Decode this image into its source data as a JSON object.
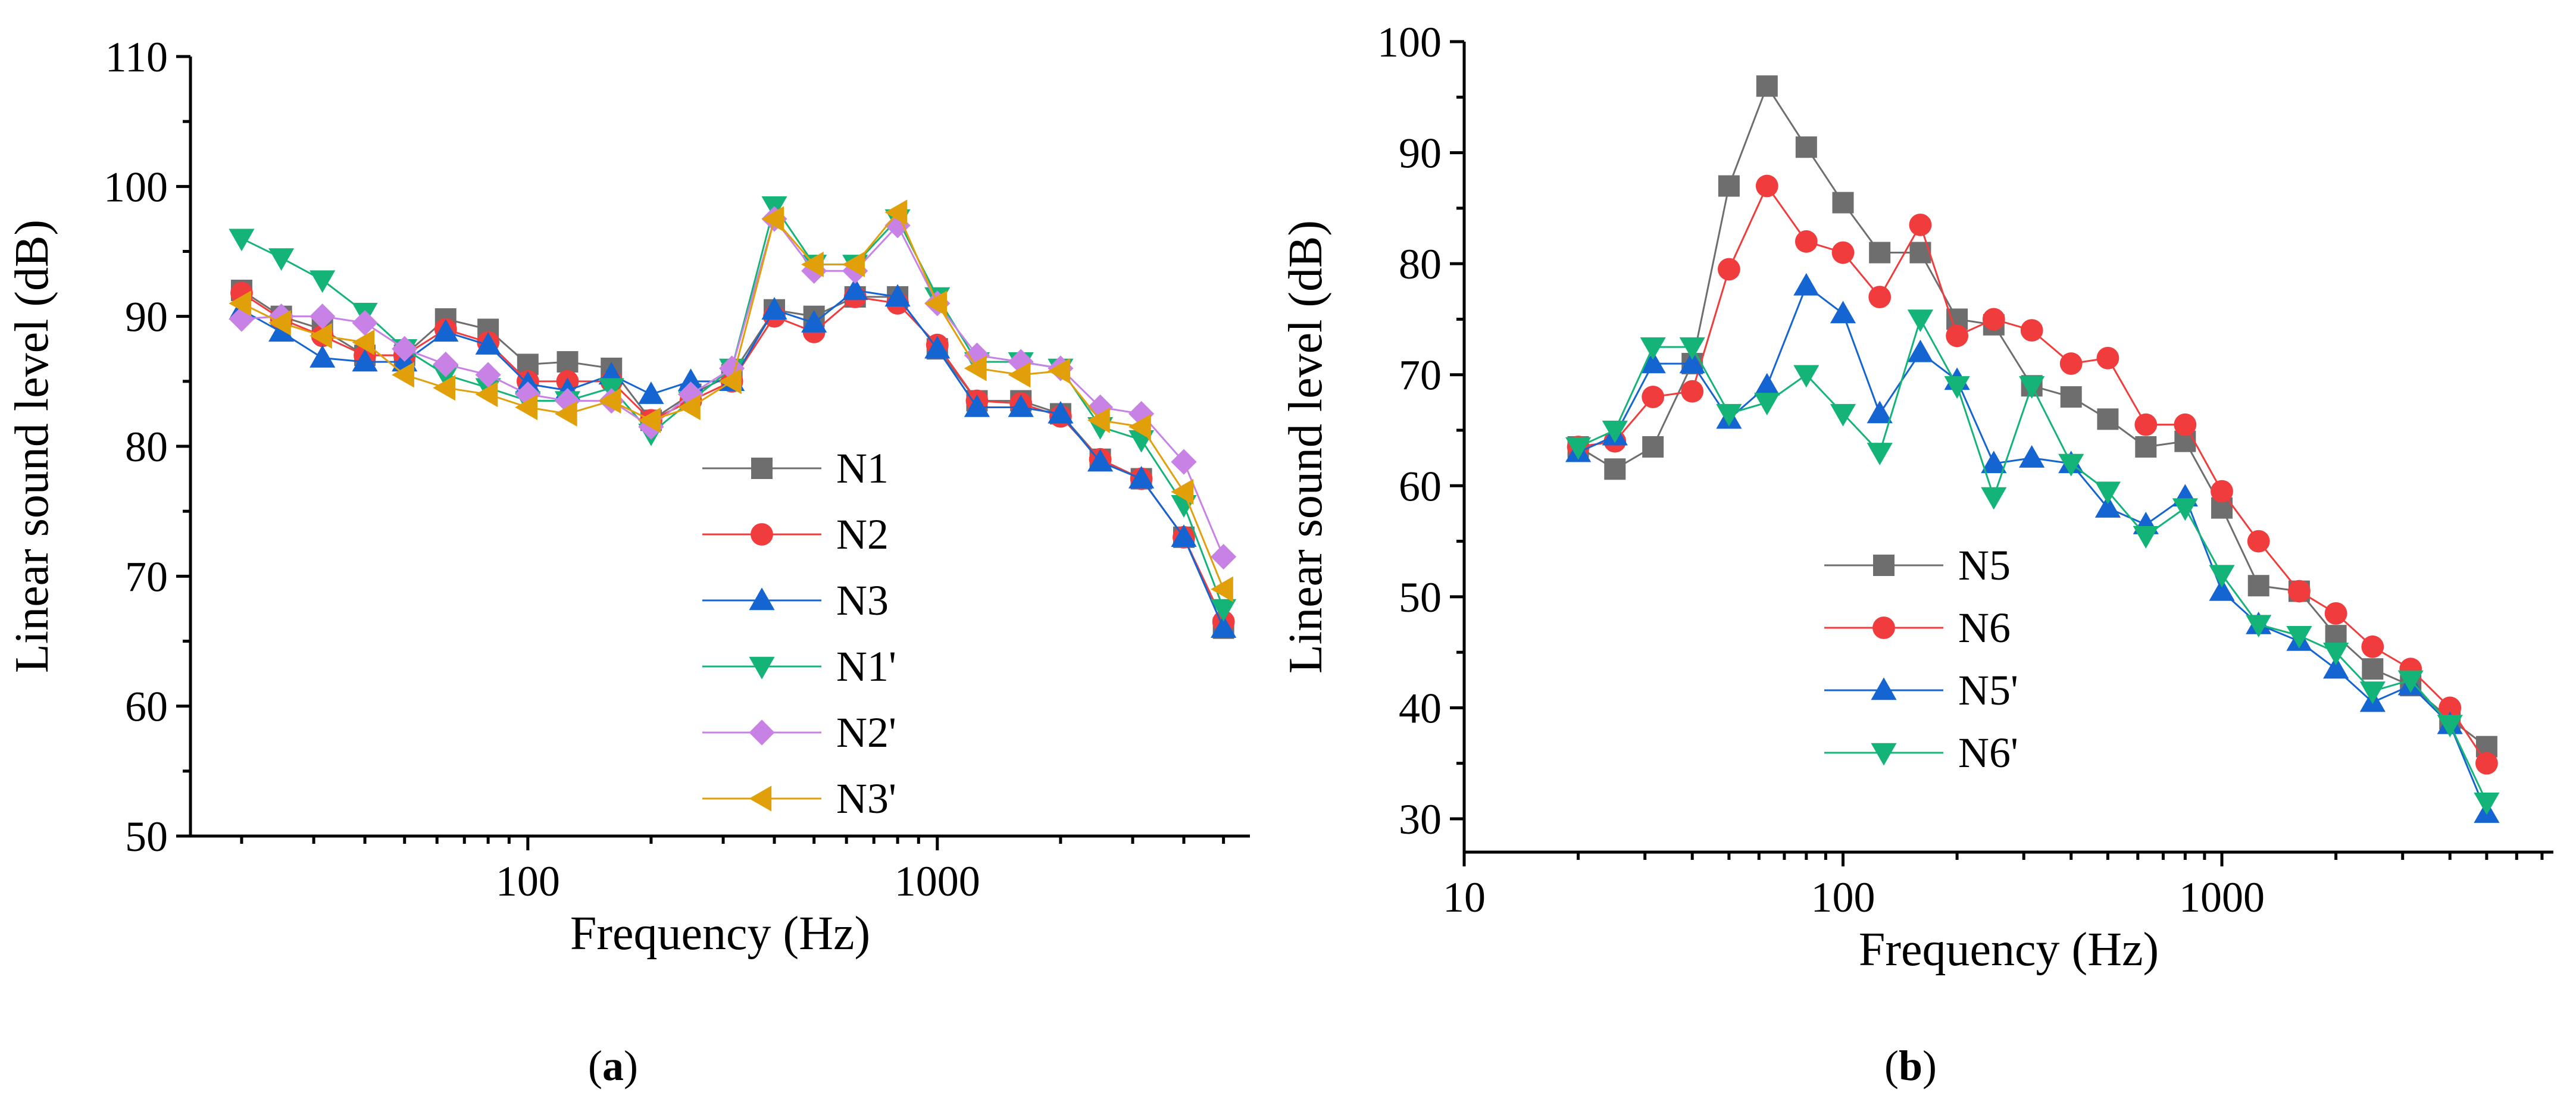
{
  "chart_data": [
    {
      "type": "line",
      "panel": "a",
      "caption": {
        "open": "(",
        "letter": "a",
        "close": ")"
      },
      "xlabel": "Frequency (Hz)",
      "ylabel": "Linear sound level (dB)",
      "xscale": "log",
      "xlim": [
        15,
        5800
      ],
      "ylim": [
        50,
        110
      ],
      "xticks": [
        100,
        1000
      ],
      "xtick_labels": [
        "100",
        "1000"
      ],
      "yticks": [
        50,
        60,
        70,
        80,
        90,
        100,
        110
      ],
      "ytick_labels": [
        "50",
        "60",
        "70",
        "80",
        "90",
        "100",
        "110"
      ],
      "legend_position": "lower-center",
      "x": [
        20,
        25,
        31.5,
        40,
        50,
        63,
        80,
        100,
        125,
        160,
        200,
        250,
        315,
        400,
        500,
        630,
        800,
        1000,
        1250,
        1600,
        2000,
        2500,
        3150,
        4000,
        5000
      ],
      "series": [
        {
          "name": "N1",
          "color": "#6e6e6e",
          "marker": "square",
          "values": [
            92,
            90,
            89,
            87,
            87,
            89.8,
            89,
            86.3,
            86.5,
            86,
            82,
            84,
            85.5,
            90.5,
            90,
            91.5,
            91.5,
            87.5,
            83.5,
            83.5,
            82.5,
            79,
            77.5,
            73,
            66
          ]
        },
        {
          "name": "N2",
          "color": "#f03c3c",
          "marker": "circle",
          "values": [
            91.8,
            89.8,
            88.5,
            87,
            87,
            89,
            88,
            85,
            85,
            85,
            82,
            83.5,
            85,
            90,
            88.8,
            91.5,
            91,
            87.8,
            83.5,
            83.3,
            82.3,
            79,
            77.5,
            73,
            66.5
          ]
        },
        {
          "name": "N3",
          "color": "#1464d2",
          "marker": "triangle-up",
          "values": [
            90.5,
            88.8,
            86.8,
            86.5,
            86.5,
            88.8,
            87.8,
            84.8,
            84.3,
            85.5,
            84,
            85,
            85,
            90.5,
            89.5,
            92,
            91.5,
            87.5,
            83,
            83,
            82.5,
            78.8,
            77.5,
            73,
            66
          ]
        },
        {
          "name": "N1'",
          "color": "#14b478",
          "marker": "triangle-down",
          "values": [
            96,
            94.5,
            92.8,
            90.3,
            87.5,
            85.5,
            84.5,
            83.5,
            83.5,
            84.5,
            81,
            83.5,
            86,
            98.5,
            94,
            94,
            97.5,
            91.5,
            86.5,
            86.5,
            86,
            81.5,
            80.5,
            75.5,
            67.5
          ]
        },
        {
          "name": "N2'",
          "color": "#c882e6",
          "marker": "diamond",
          "values": [
            89.8,
            90,
            90,
            89.5,
            87.5,
            86.3,
            85.5,
            84,
            83.5,
            83.5,
            81.5,
            84,
            86,
            97.5,
            93.5,
            93.5,
            97,
            91,
            87,
            86.5,
            86,
            83,
            82.5,
            78.8,
            71.5
          ]
        },
        {
          "name": "N3'",
          "color": "#e1a00a",
          "marker": "triangle-left",
          "values": [
            91,
            89.5,
            88.5,
            88,
            85.5,
            84.5,
            84,
            83,
            82.5,
            83.5,
            82,
            83,
            85,
            97.5,
            94,
            94,
            98,
            91,
            86,
            85.5,
            85.8,
            82,
            81.5,
            76.5,
            69
          ]
        }
      ]
    },
    {
      "type": "line",
      "panel": "b",
      "caption": {
        "open": "(",
        "letter": "b",
        "close": ")"
      },
      "xlabel": "Frequency (Hz)",
      "ylabel": "Linear sound level (dB)",
      "xscale": "log",
      "xlim": [
        10,
        7500
      ],
      "ylim": [
        27,
        100
      ],
      "xticks": [
        10,
        100,
        1000
      ],
      "xtick_labels": [
        "10",
        "100",
        "1000"
      ],
      "yticks": [
        30,
        40,
        50,
        60,
        70,
        80,
        90,
        100
      ],
      "ytick_labels": [
        "30",
        "40",
        "50",
        "60",
        "70",
        "80",
        "90",
        "100"
      ],
      "legend_position": "lower-center",
      "x": [
        20,
        25,
        31.5,
        40,
        50,
        63,
        80,
        100,
        125,
        160,
        200,
        250,
        315,
        400,
        500,
        630,
        800,
        1000,
        1250,
        1600,
        2000,
        2500,
        3150,
        4000,
        5000
      ],
      "series": [
        {
          "name": "N5",
          "color": "#6e6e6e",
          "marker": "square",
          "values": [
            63.5,
            61.5,
            63.5,
            71,
            87,
            96,
            90.5,
            85.5,
            81,
            81,
            75,
            74.5,
            69,
            68,
            66,
            63.5,
            64,
            58,
            51,
            50.5,
            46.5,
            43.5,
            42,
            39,
            36.5
          ]
        },
        {
          "name": "N6",
          "color": "#f03c3c",
          "marker": "circle",
          "values": [
            63.5,
            64,
            68,
            68.5,
            79.5,
            87,
            82,
            81,
            77,
            83.5,
            73.5,
            75,
            74,
            71,
            71.5,
            65.5,
            65.5,
            59.5,
            55,
            50.5,
            48.5,
            45.5,
            43.5,
            40,
            35
          ]
        },
        {
          "name": "N5'",
          "color": "#1464d2",
          "marker": "triangle-up",
          "values": [
            63,
            64.5,
            71,
            71,
            66,
            69,
            78,
            75.5,
            66.5,
            72,
            69.5,
            62,
            62.5,
            62,
            58,
            56.5,
            59,
            50.5,
            47.5,
            46,
            43.5,
            40.5,
            42,
            38.5,
            30.5
          ]
        },
        {
          "name": "N6'",
          "color": "#14b478",
          "marker": "triangle-down",
          "values": [
            63.5,
            65,
            72.5,
            72.5,
            66.5,
            67.5,
            70,
            66.5,
            63,
            75,
            69,
            59,
            69,
            62,
            59.5,
            55.5,
            58,
            52,
            47.5,
            46.5,
            45,
            41.5,
            42.5,
            38.5,
            31.5
          ]
        }
      ]
    }
  ]
}
